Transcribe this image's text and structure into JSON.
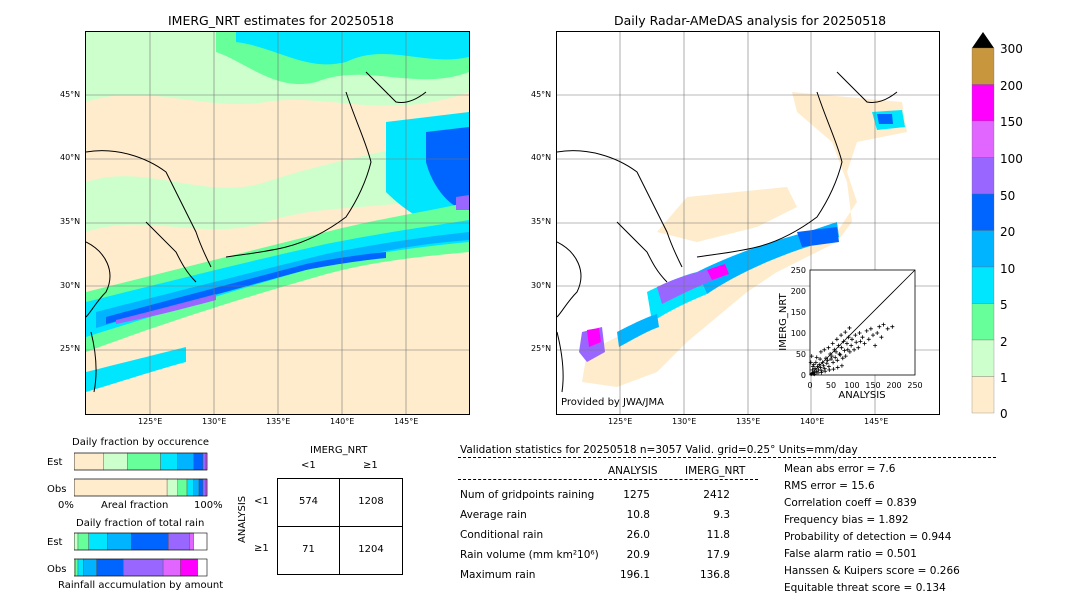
{
  "left_map": {
    "title": "IMERG_NRT estimates for 20250518",
    "lat_labels": [
      "45°N",
      "40°N",
      "35°N",
      "30°N",
      "25°N"
    ],
    "lon_labels": [
      "125°E",
      "130°E",
      "135°E",
      "140°E",
      "145°E"
    ]
  },
  "right_map": {
    "title": "Daily Radar-AMeDAS analysis for 20250518",
    "lat_labels": [
      "45°N",
      "40°N",
      "35°N",
      "30°N",
      "25°N"
    ],
    "lon_labels": [
      "125°E",
      "130°E",
      "135°E",
      "140°E",
      "145°E"
    ],
    "credit": "Provided by JWA/JMA"
  },
  "colorbar": {
    "ticks": [
      "300",
      "200",
      "150",
      "100",
      "50",
      "20",
      "10",
      "5",
      "2",
      "1",
      "0"
    ],
    "colors": [
      "#c8963c",
      "#ff00ff",
      "#e066ff",
      "#9966ff",
      "#0064ff",
      "#00b4ff",
      "#00e6ff",
      "#66ff99",
      "#ccffcc",
      "#ffeccc"
    ]
  },
  "chart_data": [
    {
      "type": "scatter",
      "xlabel": "ANALYSIS",
      "ylabel": "IMERG_NRT",
      "xlim": [
        0,
        250
      ],
      "ylim": [
        0,
        250
      ],
      "x_ticks": [
        "0",
        "50",
        "100",
        "150",
        "200",
        "250"
      ],
      "y_ticks": [
        "0",
        "50",
        "100",
        "150",
        "200",
        "250"
      ],
      "points": [
        [
          3,
          2
        ],
        [
          5,
          4
        ],
        [
          8,
          3
        ],
        [
          10,
          6
        ],
        [
          12,
          15
        ],
        [
          15,
          8
        ],
        [
          18,
          20
        ],
        [
          20,
          12
        ],
        [
          22,
          25
        ],
        [
          25,
          18
        ],
        [
          28,
          10
        ],
        [
          30,
          30
        ],
        [
          32,
          22
        ],
        [
          35,
          15
        ],
        [
          38,
          40
        ],
        [
          40,
          28
        ],
        [
          42,
          35
        ],
        [
          45,
          20
        ],
        [
          48,
          50
        ],
        [
          50,
          38
        ],
        [
          52,
          45
        ],
        [
          55,
          30
        ],
        [
          58,
          60
        ],
        [
          60,
          42
        ],
        [
          62,
          55
        ],
        [
          65,
          35
        ],
        [
          68,
          70
        ],
        [
          70,
          50
        ],
        [
          72,
          48
        ],
        [
          75,
          65
        ],
        [
          78,
          40
        ],
        [
          80,
          80
        ],
        [
          82,
          58
        ],
        [
          85,
          45
        ],
        [
          88,
          75
        ],
        [
          90,
          60
        ],
        [
          92,
          90
        ],
        [
          95,
          55
        ],
        [
          98,
          70
        ],
        [
          100,
          85
        ],
        [
          105,
          60
        ],
        [
          108,
          95
        ],
        [
          110,
          78
        ],
        [
          115,
          65
        ],
        [
          118,
          100
        ],
        [
          120,
          80
        ],
        [
          125,
          90
        ],
        [
          130,
          75
        ],
        [
          135,
          105
        ],
        [
          140,
          85
        ],
        [
          145,
          110
        ],
        [
          150,
          95
        ],
        [
          155,
          70
        ],
        [
          160,
          100
        ],
        [
          165,
          115
        ],
        [
          170,
          90
        ],
        [
          175,
          120
        ],
        [
          185,
          110
        ],
        [
          196,
          115
        ],
        [
          6,
          12
        ],
        [
          9,
          25
        ],
        [
          14,
          30
        ],
        [
          16,
          42
        ],
        [
          24,
          38
        ],
        [
          26,
          55
        ],
        [
          34,
          60
        ],
        [
          44,
          65
        ],
        [
          54,
          75
        ],
        [
          64,
          85
        ],
        [
          74,
          95
        ],
        [
          84,
          102
        ],
        [
          94,
          112
        ],
        [
          2,
          30
        ],
        [
          4,
          45
        ],
        [
          7,
          20
        ],
        [
          11,
          2
        ],
        [
          19,
          5
        ],
        [
          27,
          6
        ],
        [
          36,
          9
        ],
        [
          46,
          12
        ],
        [
          56,
          14
        ],
        [
          66,
          18
        ],
        [
          76,
          22
        ]
      ],
      "diagonal": true
    },
    {
      "type": "bar",
      "title": "Daily fraction by occurence",
      "categories": [
        "Est",
        "Obs"
      ],
      "series": [
        {
          "name": "0",
          "color": "#ffeccc",
          "values": [
            0.22,
            0.7
          ]
        },
        {
          "name": "1",
          "color": "#ccffcc",
          "values": [
            0.18,
            0.08
          ]
        },
        {
          "name": "2",
          "color": "#66ff99",
          "values": [
            0.25,
            0.07
          ]
        },
        {
          "name": "5",
          "color": "#00e6ff",
          "values": [
            0.13,
            0.05
          ]
        },
        {
          "name": "10",
          "color": "#00b4ff",
          "values": [
            0.12,
            0.04
          ]
        },
        {
          "name": "20",
          "color": "#0064ff",
          "values": [
            0.07,
            0.03
          ]
        },
        {
          "name": "50",
          "color": "#9966ff",
          "values": [
            0.02,
            0.02
          ]
        },
        {
          "name": "100",
          "color": "#e066ff",
          "values": [
            0.01,
            0.01
          ]
        }
      ],
      "xlabel": "Areal fraction",
      "x_ticks": [
        "0%",
        "100%"
      ]
    },
    {
      "type": "bar",
      "title": "Daily fraction of total rain",
      "categories": [
        "Est",
        "Obs"
      ],
      "series": [
        {
          "name": "1",
          "color": "#ccffcc",
          "values": [
            0.03,
            0.01
          ]
        },
        {
          "name": "2",
          "color": "#66ff99",
          "values": [
            0.08,
            0.02
          ]
        },
        {
          "name": "5",
          "color": "#00e6ff",
          "values": [
            0.14,
            0.04
          ]
        },
        {
          "name": "10",
          "color": "#00b4ff",
          "values": [
            0.18,
            0.1
          ]
        },
        {
          "name": "20",
          "color": "#0064ff",
          "values": [
            0.28,
            0.2
          ]
        },
        {
          "name": "50",
          "color": "#9966ff",
          "values": [
            0.16,
            0.3
          ]
        },
        {
          "name": "100",
          "color": "#e066ff",
          "values": [
            0.03,
            0.13
          ]
        },
        {
          "name": "150",
          "color": "#ff00ff",
          "values": [
            0.0,
            0.13
          ]
        }
      ],
      "xlabel": "Rainfall accumulation by amount"
    }
  ],
  "contingency": {
    "header": "IMERG_NRT",
    "col_labels": [
      "<1",
      "≥1"
    ],
    "row_header": "ANALYSIS",
    "row_labels": [
      "<1",
      "≥1"
    ],
    "cells": [
      [
        "574",
        "1208"
      ],
      [
        "71",
        "1204"
      ]
    ]
  },
  "validation": {
    "heading": "Validation statistics for 20250518  n=3057 Valid. grid=0.25° Units=mm/day",
    "col_analysis": "ANALYSIS",
    "col_imerg": "IMERG_NRT",
    "rows": [
      {
        "label": "Num of gridpoints raining",
        "analysis": "1275",
        "imerg": "2412"
      },
      {
        "label": "Average rain",
        "analysis": "10.8",
        "imerg": "9.3"
      },
      {
        "label": "Conditional rain",
        "analysis": "26.0",
        "imerg": "11.8"
      },
      {
        "label": "Rain volume (mm km²10⁶)",
        "analysis": "20.9",
        "imerg": "17.9"
      },
      {
        "label": "Maximum rain",
        "analysis": "196.1",
        "imerg": "136.8"
      }
    ],
    "scores": [
      "Mean abs error =    7.6",
      "RMS error =   15.6",
      "Correlation coeff =  0.839",
      "Frequency bias =  1.892",
      "Probability of detection =  0.944",
      "False alarm ratio =  0.501",
      "Hanssen & Kuipers score =  0.266",
      "Equitable threat score =  0.134"
    ]
  }
}
